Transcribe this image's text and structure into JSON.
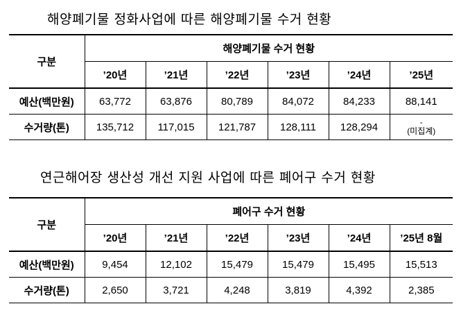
{
  "table1": {
    "title": "해양폐기물 정화사업에 따른 해양폐기물 수거 현황",
    "rowhead": "구분",
    "supheader": "해양폐기물 수거 현황",
    "years": [
      "’20년",
      "’21년",
      "’22년",
      "’23년",
      "’24년",
      "’25년"
    ],
    "rows": [
      {
        "label": "예산(백만원)",
        "values": [
          "63,772",
          "63,876",
          "80,789",
          "84,072",
          "84,233",
          "88,141"
        ]
      },
      {
        "label": "수거량(톤)",
        "values": [
          "135,712",
          "117,015",
          "121,787",
          "128,111",
          "128,294",
          "-"
        ],
        "note": "(미집계)"
      }
    ]
  },
  "table2": {
    "title": "연근해어장 생산성 개선 지원 사업에 따른 폐어구 수거 현황",
    "rowhead": "구분",
    "supheader": "폐어구 수거 현황",
    "years": [
      "’20년",
      "’21년",
      "’22년",
      "’23년",
      "’24년",
      "’25년 8월"
    ],
    "rows": [
      {
        "label": "예산(백만원)",
        "values": [
          "9,454",
          "12,102",
          "15,479",
          "15,479",
          "15,495",
          "15,513"
        ]
      },
      {
        "label": "수거량(톤)",
        "values": [
          "2,650",
          "3,721",
          "4,248",
          "3,819",
          "4,392",
          "2,385"
        ]
      }
    ]
  }
}
